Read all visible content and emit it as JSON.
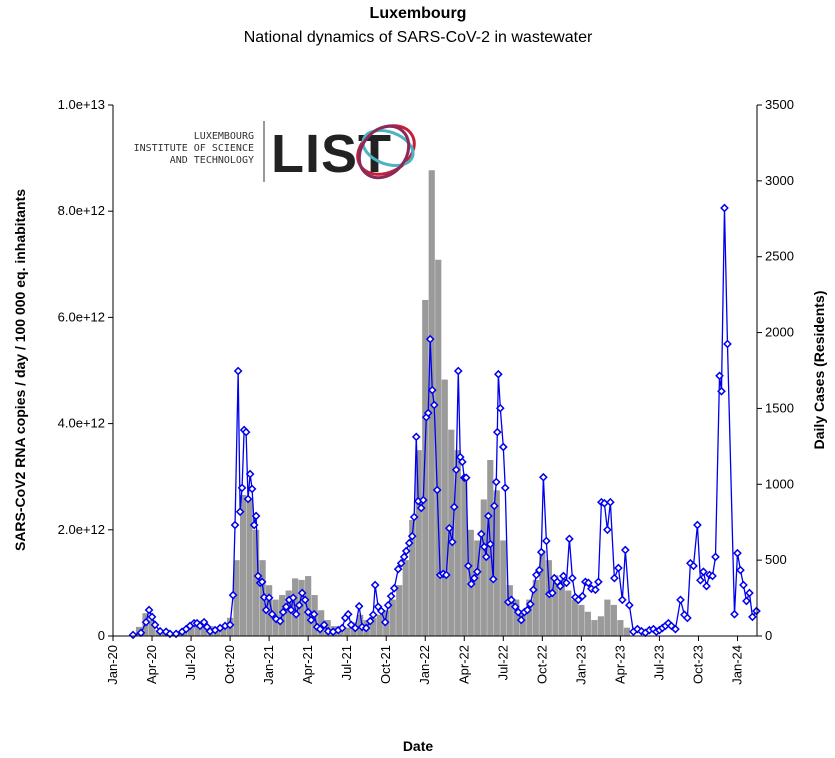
{
  "logo": {
    "lines": [
      "LUXEMBOURG",
      "INSTITUTE OF SCIENCE",
      "AND TECHNOLOGY"
    ],
    "wordmark": "LIST"
  },
  "chart_data": {
    "type": "combo",
    "title": "Luxembourg",
    "subtitle": "National dynamics of SARS-CoV-2 in wastewater",
    "x_label": "Date",
    "y_label": "SARS-CoV2 RNA copies / day  / 100 000 eq. inhabitants",
    "y2_label": "Daily Cases (Residents)",
    "xlim": [
      0,
      49.5
    ],
    "xticks": [
      {
        "value": 0,
        "label": "Jan-20"
      },
      {
        "value": 3,
        "label": "Apr-20"
      },
      {
        "value": 6,
        "label": "Jul-20"
      },
      {
        "value": 9,
        "label": "Oct-20"
      },
      {
        "value": 12,
        "label": "Jan-21"
      },
      {
        "value": 15,
        "label": "Apr-21"
      },
      {
        "value": 18,
        "label": "Jul-21"
      },
      {
        "value": 21,
        "label": "Oct-21"
      },
      {
        "value": 24,
        "label": "Jan-22"
      },
      {
        "value": 27,
        "label": "Apr-22"
      },
      {
        "value": 30,
        "label": "Jul-22"
      },
      {
        "value": 33,
        "label": "Oct-22"
      },
      {
        "value": 36,
        "label": "Jan-23"
      },
      {
        "value": 39,
        "label": "Apr-23"
      },
      {
        "value": 42,
        "label": "Jul-23"
      },
      {
        "value": 45,
        "label": "Oct-23"
      },
      {
        "value": 48,
        "label": "Jan-24"
      }
    ],
    "ylim": [
      0,
      10000000000000.0
    ],
    "yticks": [
      0,
      {
        "value": 2000000000000.0,
        "label": "2.0e+12"
      },
      {
        "value": 4000000000000.0,
        "label": "4.0e+12"
      },
      {
        "value": 6000000000000.0,
        "label": "6.0e+12"
      },
      {
        "value": 8000000000000.0,
        "label": "8.0e+12"
      },
      {
        "value": 10000000000000.0,
        "label": "1.0e+13"
      }
    ],
    "y2lim": [
      0,
      3500
    ],
    "y2ticks": [
      0,
      500,
      1000,
      1500,
      2000,
      2500,
      3000,
      3500
    ],
    "series": [
      {
        "type": "bar",
        "axis": "y2",
        "color": "#9a9a9a",
        "x": [
          2,
          2.5,
          3,
          3.5,
          4,
          4.5,
          5,
          5.5,
          6,
          6.5,
          7,
          7.5,
          8,
          8.5,
          9,
          9.5,
          10,
          10.5,
          11,
          11.5,
          12,
          12.5,
          13,
          13.5,
          14,
          14.5,
          15,
          15.5,
          16,
          16.5,
          17,
          17.5,
          18,
          18.5,
          19,
          19.5,
          20,
          20.5,
          21,
          21.5,
          22,
          22.5,
          23,
          23.5,
          24,
          24.5,
          25,
          25.5,
          26,
          26.5,
          27,
          27.5,
          28,
          28.5,
          29,
          29.5,
          30,
          30.5,
          31,
          31.5,
          32,
          32.5,
          33,
          33.5,
          34,
          34.5,
          35,
          35.5,
          36,
          36.5,
          37,
          37.5,
          38,
          38.5,
          39,
          39.5
        ],
        "values": [
          60,
          150,
          105,
          40,
          20,
          20,
          20,
          25,
          55,
          100,
          105,
          65,
          55,
          70,
          120,
          500,
          930,
          900,
          700,
          500,
          335,
          240,
          270,
          300,
          380,
          370,
          395,
          270,
          170,
          105,
          65,
          45,
          55,
          90,
          140,
          105,
          120,
          140,
          170,
          240,
          335,
          500,
          765,
          1225,
          2215,
          3070,
          2480,
          1690,
          1360,
          1225,
          1030,
          700,
          630,
          900,
          1160,
          960,
          630,
          335,
          240,
          170,
          240,
          370,
          565,
          500,
          400,
          370,
          300,
          240,
          205,
          160,
          105,
          130,
          240,
          205,
          105,
          55
        ]
      },
      {
        "type": "line",
        "color": "#0000ee",
        "marker": "diamond",
        "x": [
          1.54,
          2.15,
          2.54,
          2.77,
          3.0,
          3.23,
          3.62,
          4.08,
          4.38,
          4.85,
          5.31,
          5.62,
          5.92,
          6.23,
          6.46,
          6.69,
          7.0,
          7.23,
          7.46,
          7.85,
          8.23,
          8.62,
          9.0,
          9.23,
          9.38,
          9.62,
          9.77,
          9.92,
          10.08,
          10.23,
          10.38,
          10.54,
          10.69,
          10.85,
          11.0,
          11.15,
          11.31,
          11.46,
          11.62,
          11.77,
          12.0,
          12.23,
          12.54,
          12.85,
          13.08,
          13.31,
          13.54,
          13.69,
          13.85,
          14.08,
          14.31,
          14.54,
          14.77,
          15.0,
          15.23,
          15.46,
          15.69,
          15.92,
          16.23,
          16.54,
          16.92,
          17.31,
          17.62,
          17.85,
          18.08,
          18.31,
          18.62,
          18.92,
          19.15,
          19.46,
          19.77,
          20.0,
          20.15,
          20.38,
          20.62,
          20.92,
          21.15,
          21.38,
          21.62,
          21.92,
          22.15,
          22.38,
          22.54,
          22.77,
          23.0,
          23.15,
          23.31,
          23.46,
          23.69,
          23.85,
          24.08,
          24.23,
          24.38,
          24.54,
          24.69,
          24.92,
          25.15,
          25.38,
          25.62,
          25.85,
          26.08,
          26.23,
          26.38,
          26.54,
          26.69,
          26.85,
          27.0,
          27.15,
          27.31,
          27.54,
          27.77,
          28.0,
          28.31,
          28.54,
          28.69,
          28.85,
          29.0,
          29.23,
          29.31,
          29.46,
          29.54,
          29.62,
          29.77,
          30.0,
          30.15,
          30.38,
          30.62,
          30.92,
          31.15,
          31.38,
          31.62,
          31.85,
          32.08,
          32.31,
          32.54,
          32.77,
          32.92,
          33.08,
          33.31,
          33.54,
          33.77,
          33.92,
          34.15,
          34.38,
          34.62,
          34.85,
          35.08,
          35.31,
          35.54,
          35.77,
          36.08,
          36.31,
          36.54,
          36.77,
          37.08,
          37.31,
          37.54,
          37.77,
          38.0,
          38.23,
          38.54,
          38.85,
          39.15,
          39.38,
          39.69,
          40.0,
          40.31,
          40.62,
          40.92,
          41.23,
          41.54,
          41.77,
          42.0,
          42.23,
          42.46,
          42.69,
          42.92,
          43.23,
          43.62,
          43.92,
          44.15,
          44.38,
          44.62,
          44.92,
          45.15,
          45.38,
          45.62,
          45.85,
          46.08,
          46.31,
          46.62,
          46.77,
          47.0,
          47.23,
          47.77,
          48.0,
          48.23,
          48.46,
          48.69,
          48.92,
          49.15,
          49.46
        ],
        "values": [
          20000000000.0,
          60000000000.0,
          260000000000.0,
          490000000000.0,
          360000000000.0,
          210000000000.0,
          90000000000.0,
          80000000000.0,
          40000000000.0,
          40000000000.0,
          80000000000.0,
          130000000000.0,
          190000000000.0,
          240000000000.0,
          240000000000.0,
          190000000000.0,
          260000000000.0,
          170000000000.0,
          90000000000.0,
          110000000000.0,
          150000000000.0,
          190000000000.0,
          210000000000.0,
          770000000000.0,
          2090000000000.0,
          4990000000000.0,
          2340000000000.0,
          2790000000000.0,
          3880000000000.0,
          3840000000000.0,
          2580000000000.0,
          3050000000000.0,
          2770000000000.0,
          2090000000000.0,
          2260000000000.0,
          1130000000000.0,
          1000000000000.0,
          1020000000000.0,
          730000000000.0,
          490000000000.0,
          720000000000.0,
          410000000000.0,
          320000000000.0,
          280000000000.0,
          450000000000.0,
          550000000000.0,
          680000000000.0,
          490000000000.0,
          720000000000.0,
          410000000000.0,
          580000000000.0,
          810000000000.0,
          680000000000.0,
          450000000000.0,
          300000000000.0,
          410000000000.0,
          170000000000.0,
          130000000000.0,
          210000000000.0,
          90000000000.0,
          80000000000.0,
          110000000000.0,
          150000000000.0,
          340000000000.0,
          410000000000.0,
          210000000000.0,
          150000000000.0,
          560000000000.0,
          170000000000.0,
          150000000000.0,
          280000000000.0,
          400000000000.0,
          960000000000.0,
          550000000000.0,
          470000000000.0,
          260000000000.0,
          580000000000.0,
          750000000000.0,
          900000000000.0,
          1260000000000.0,
          1370000000000.0,
          1490000000000.0,
          1600000000000.0,
          1750000000000.0,
          1880000000000.0,
          2240000000000.0,
          3750000000000.0,
          2540000000000.0,
          2410000000000.0,
          2560000000000.0,
          4120000000000.0,
          4200000000000.0,
          5590000000000.0,
          4630000000000.0,
          4350000000000.0,
          2750000000000.0,
          1150000000000.0,
          1170000000000.0,
          1150000000000.0,
          2030000000000.0,
          1770000000000.0,
          2430000000000.0,
          3130000000000.0,
          4990000000000.0,
          3370000000000.0,
          3280000000000.0,
          2980000000000.0,
          2980000000000.0,
          1320000000000.0,
          980000000000.0,
          1090000000000.0,
          1210000000000.0,
          1920000000000.0,
          1680000000000.0,
          1490000000000.0,
          2260000000000.0,
          1730000000000.0,
          1070000000000.0,
          2450000000000.0,
          2900000000000.0,
          3840000000000.0,
          4930000000000.0,
          4290000000000.0,
          3560000000000.0,
          2790000000000.0,
          640000000000.0,
          680000000000.0,
          550000000000.0,
          450000000000.0,
          300000000000.0,
          450000000000.0,
          490000000000.0,
          600000000000.0,
          870000000000.0,
          1150000000000.0,
          1240000000000.0,
          1580000000000.0,
          2990000000000.0,
          1790000000000.0,
          790000000000.0,
          810000000000.0,
          1090000000000.0,
          1020000000000.0,
          940000000000.0,
          1130000000000.0,
          1000000000000.0,
          1830000000000.0,
          1090000000000.0,
          730000000000.0,
          680000000000.0,
          750000000000.0,
          1020000000000.0,
          1000000000000.0,
          890000000000.0,
          870000000000.0,
          1020000000000.0,
          2520000000000.0,
          2500000000000.0,
          2000000000000.0,
          2520000000000.0,
          1090000000000.0,
          1280000000000.0,
          680000000000.0,
          1620000000000.0,
          580000000000.0,
          80000000000.0,
          130000000000.0,
          90000000000.0,
          60000000000.0,
          110000000000.0,
          130000000000.0,
          80000000000.0,
          110000000000.0,
          150000000000.0,
          190000000000.0,
          240000000000.0,
          190000000000.0,
          130000000000.0,
          680000000000.0,
          400000000000.0,
          340000000000.0,
          1370000000000.0,
          1320000000000.0,
          2090000000000.0,
          1050000000000.0,
          1210000000000.0,
          940000000000.0,
          1150000000000.0,
          1130000000000.0,
          1490000000000.0,
          4900000000000.0,
          4610000000000.0,
          8060000000000.0,
          5500000000000.0,
          410000000000.0,
          1560000000000.0,
          1240000000000.0,
          960000000000.0,
          660000000000.0,
          810000000000.0,
          360000000000.0,
          470000000000.0
        ]
      }
    ]
  }
}
